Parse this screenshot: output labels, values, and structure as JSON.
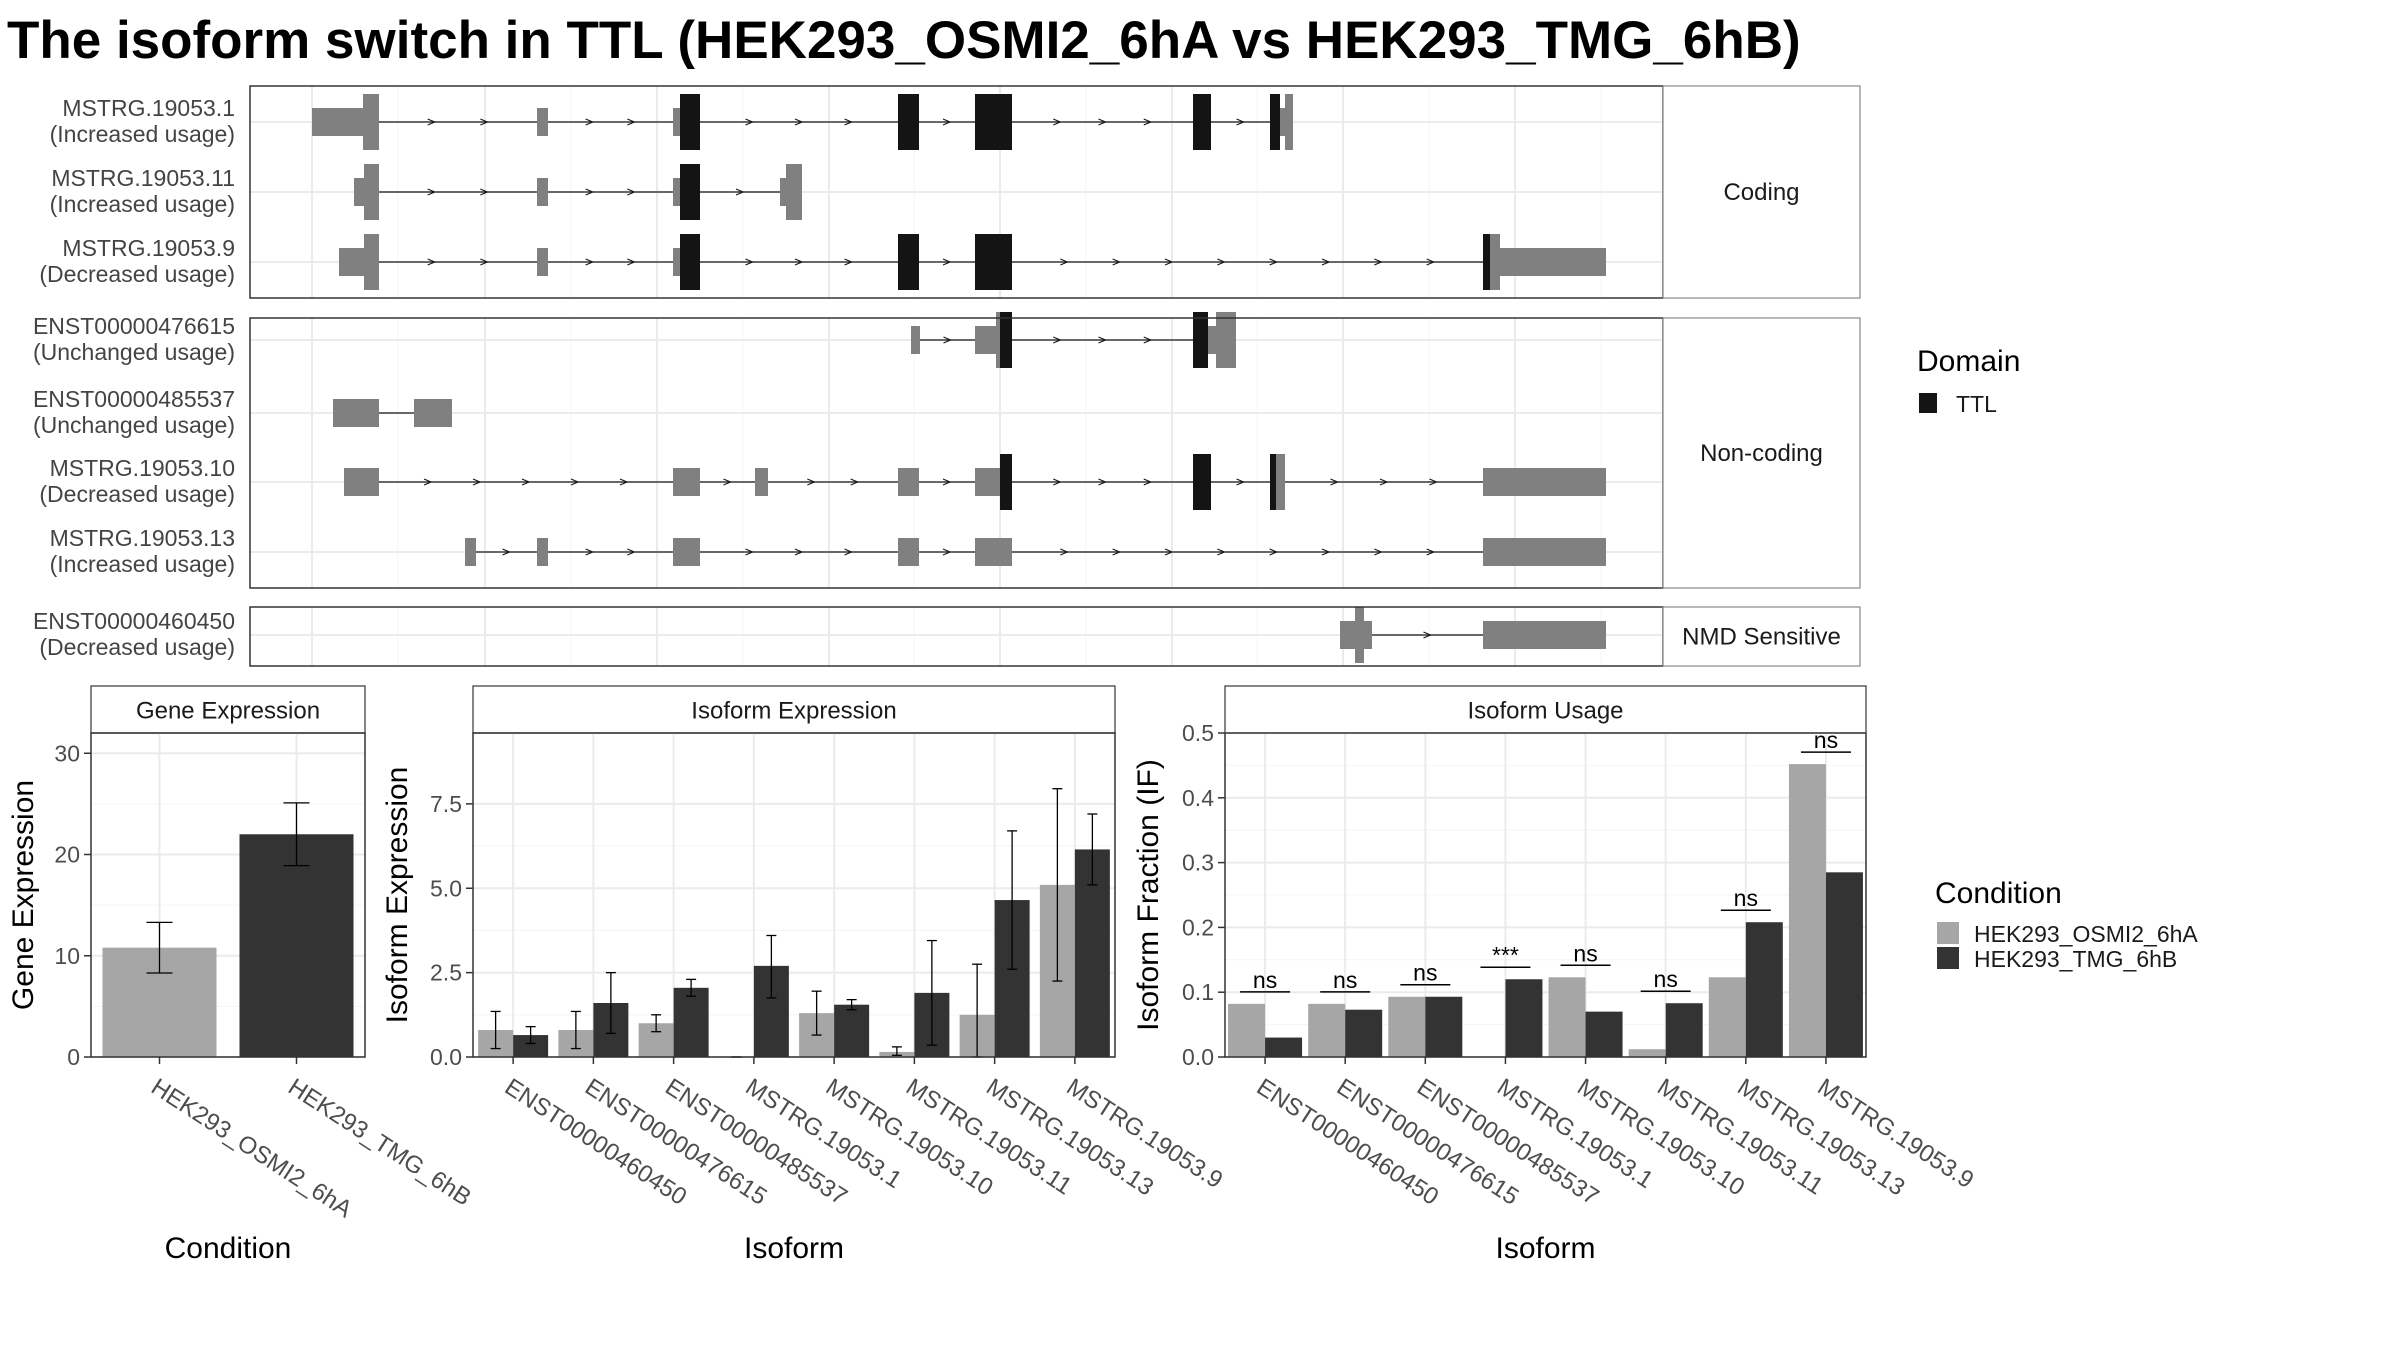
{
  "title": "The isoform switch in TTL (HEK293_OSMI2_6hA vs HEK293_TMG_6hB)",
  "colors": {
    "condition_a": "#a6a6a6",
    "condition_b": "#333333",
    "utr": "#808080",
    "domain": "#141414"
  },
  "chart_data": [
    {
      "type": "gene-structure",
      "panels": [
        {
          "label": "Coding",
          "transcripts": [
            {
              "id": "MSTRG.19053.1",
              "usage": "(Increased usage)"
            },
            {
              "id": "MSTRG.19053.11",
              "usage": "(Increased usage)"
            },
            {
              "id": "MSTRG.19053.9",
              "usage": "(Decreased usage)"
            }
          ]
        },
        {
          "label": "Non-coding",
          "transcripts": [
            {
              "id": "ENST00000476615",
              "usage": "(Unchanged usage)"
            },
            {
              "id": "ENST00000485537",
              "usage": "(Unchanged usage)"
            },
            {
              "id": "MSTRG.19053.10",
              "usage": "(Decreased usage)"
            },
            {
              "id": "MSTRG.19053.13",
              "usage": "(Increased usage)"
            }
          ]
        },
        {
          "label": "NMD Sensitive",
          "transcripts": [
            {
              "id": "ENST00000460450",
              "usage": "(Decreased usage)"
            }
          ]
        }
      ],
      "legend": {
        "title": "Domain",
        "items": [
          "TTL"
        ]
      }
    },
    {
      "type": "bar",
      "strip": "Gene Expression",
      "xlabel": "Condition",
      "ylabel": "Gene Expression",
      "ylim": [
        0,
        32
      ],
      "yticks": [
        0,
        10,
        20,
        30
      ],
      "categories": [
        "HEK293_OSMI2_6hA",
        "HEK293_TMG_6hB"
      ],
      "values": [
        10.8,
        22.0
      ],
      "errors": [
        [
          8.3,
          13.3
        ],
        [
          18.9,
          25.1
        ]
      ]
    },
    {
      "type": "bar",
      "strip": "Isoform Expression",
      "xlabel": "Isoform",
      "ylabel": "Isoform Expression",
      "ylim": [
        0,
        9.6
      ],
      "yticks": [
        0.0,
        2.5,
        5.0,
        7.5
      ],
      "tick_labels": [
        "0.0",
        "2.5",
        "5.0",
        "7.5"
      ],
      "categories": [
        "ENST00000460450",
        "ENST00000476615",
        "ENST00000485537",
        "MSTRG.19053.1",
        "MSTRG.19053.10",
        "MSTRG.19053.11",
        "MSTRG.19053.13",
        "MSTRG.19053.9"
      ],
      "series": [
        {
          "name": "HEK293_OSMI2_6hA",
          "values": [
            0.8,
            0.8,
            1.0,
            0.0,
            1.3,
            0.15,
            1.25,
            5.1
          ],
          "errors": [
            [
              0.25,
              1.35
            ],
            [
              0.25,
              1.35
            ],
            [
              0.75,
              1.25
            ],
            [
              0.0,
              0.0
            ],
            [
              0.65,
              1.95
            ],
            [
              0.05,
              0.3
            ],
            [
              0.0,
              2.75
            ],
            [
              2.25,
              7.95
            ]
          ]
        },
        {
          "name": "HEK293_TMG_6hB",
          "values": [
            0.65,
            1.6,
            2.05,
            2.7,
            1.55,
            1.9,
            4.65,
            6.15
          ],
          "errors": [
            [
              0.4,
              0.9
            ],
            [
              0.7,
              2.5
            ],
            [
              1.8,
              2.3
            ],
            [
              1.75,
              3.6
            ],
            [
              1.4,
              1.7
            ],
            [
              0.35,
              3.45
            ],
            [
              2.6,
              6.7
            ],
            [
              5.1,
              7.2
            ]
          ]
        }
      ]
    },
    {
      "type": "bar",
      "strip": "Isoform Usage",
      "xlabel": "Isoform",
      "ylabel": "Isoform Fraction (IF)",
      "ylim": [
        0,
        0.5
      ],
      "yticks": [
        0.0,
        0.1,
        0.2,
        0.3,
        0.4,
        0.5
      ],
      "tick_labels": [
        "0.0",
        "0.1",
        "0.2",
        "0.3",
        "0.4",
        "0.5"
      ],
      "categories": [
        "ENST00000460450",
        "ENST00000476615",
        "ENST00000485537",
        "MSTRG.19053.1",
        "MSTRG.19053.10",
        "MSTRG.19053.11",
        "MSTRG.19053.13",
        "MSTRG.19053.9"
      ],
      "series": [
        {
          "name": "HEK293_OSMI2_6hA",
          "values": [
            0.082,
            0.082,
            0.093,
            0.0,
            0.123,
            0.012,
            0.123,
            0.452
          ]
        },
        {
          "name": "HEK293_TMG_6hB",
          "values": [
            0.03,
            0.073,
            0.093,
            0.12,
            0.07,
            0.083,
            0.208,
            0.285
          ]
        }
      ],
      "significance": [
        "ns",
        "ns",
        "ns",
        "***",
        "ns",
        "ns",
        "ns",
        "ns"
      ]
    }
  ],
  "condition_legend": {
    "title": "Condition",
    "items": [
      "HEK293_OSMI2_6hA",
      "HEK293_TMG_6hB"
    ]
  }
}
